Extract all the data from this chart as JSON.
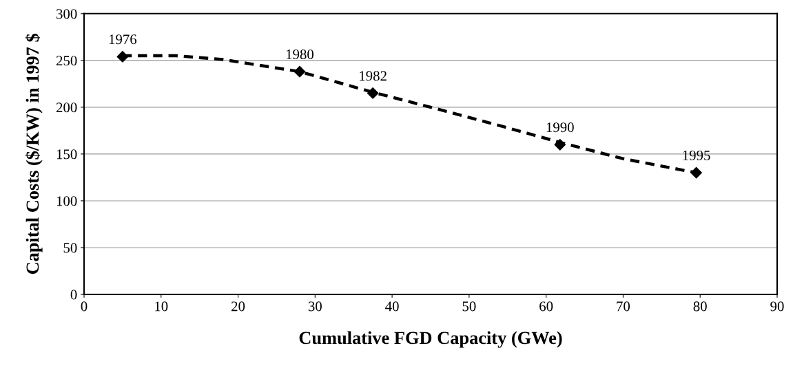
{
  "chart_data": {
    "type": "scatter",
    "xlabel": "Cumulative FGD Capacity (GWe)",
    "ylabel": "Capital Costs ($/KW) in 1997 $",
    "series": [
      {
        "type": "line",
        "color": "#000000",
        "line_style": "dashed",
        "marker": "none",
        "x": [
          5,
          12,
          18,
          28,
          37.5,
          45,
          55,
          62,
          70,
          79.5
        ],
        "values": [
          255,
          255,
          251,
          238,
          216,
          200,
          178,
          162,
          145,
          130
        ]
      },
      {
        "color": "#000000",
        "marker": "diamond",
        "x": [
          5,
          28,
          37.5,
          61.8,
          79.5
        ],
        "values": [
          254,
          238,
          215,
          160,
          130
        ]
      }
    ],
    "annotations": [
      {
        "text": "1976",
        "x": 5,
        "y": 254
      },
      {
        "text": "1980",
        "x": 28,
        "y": 238
      },
      {
        "text": "1982",
        "x": 37.5,
        "y": 215
      },
      {
        "text": "1990",
        "x": 61.8,
        "y": 160
      },
      {
        "text": "1995",
        "x": 79.5,
        "y": 130
      }
    ],
    "xlim": [
      0,
      90
    ],
    "xticks": [
      0,
      10,
      20,
      30,
      40,
      50,
      60,
      70,
      80,
      90
    ],
    "ylim": [
      0,
      300
    ],
    "yticks": [
      0,
      50,
      100,
      150,
      200,
      250,
      300
    ],
    "grid": "y"
  }
}
